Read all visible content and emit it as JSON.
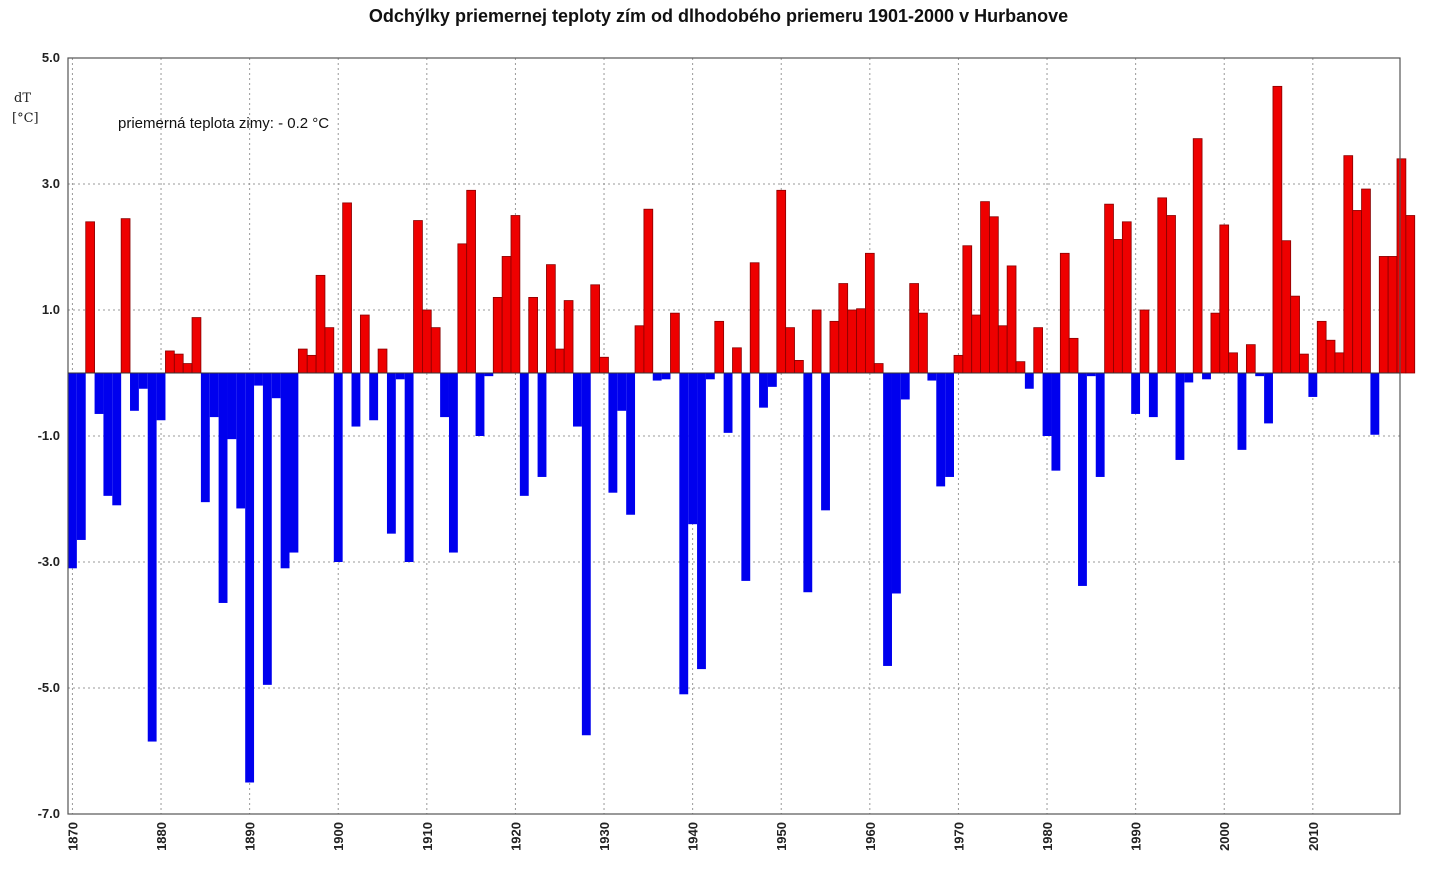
{
  "chart_data": {
    "type": "bar",
    "title": "Odchýlky priemernej teploty zím od dlhodobého priemeru 1901-2000 v Hurbanove",
    "ylabel_line1": "dT",
    "ylabel_line2": "[°C]",
    "annotation": "priemerná teplota zimy: - 0.2 °C",
    "ylim": [
      -7,
      5
    ],
    "yticks": [
      "5.0",
      "3.0",
      "1.0",
      "-1.0",
      "-3.0",
      "-5.0",
      "-7.0"
    ],
    "xticks": [
      "1870",
      "1880",
      "1890",
      "1900",
      "1910",
      "1920",
      "1930",
      "1940",
      "1950",
      "1960",
      "1970",
      "1980",
      "1990",
      "2000",
      "2010"
    ],
    "grid": true,
    "colors": {
      "positive": "#ee0000",
      "negative": "#0000ee",
      "axis": "#555555",
      "grid": "#999999"
    },
    "x": [
      1870,
      1871,
      1872,
      1873,
      1874,
      1875,
      1876,
      1877,
      1878,
      1879,
      1880,
      1881,
      1882,
      1883,
      1884,
      1885,
      1886,
      1887,
      1888,
      1889,
      1890,
      1891,
      1892,
      1893,
      1894,
      1895,
      1896,
      1897,
      1898,
      1899,
      1900,
      1901,
      1902,
      1903,
      1904,
      1905,
      1906,
      1907,
      1908,
      1909,
      1910,
      1911,
      1912,
      1913,
      1914,
      1915,
      1916,
      1917,
      1918,
      1919,
      1920,
      1921,
      1922,
      1923,
      1924,
      1925,
      1926,
      1927,
      1928,
      1929,
      1930,
      1931,
      1932,
      1933,
      1934,
      1935,
      1936,
      1937,
      1938,
      1939,
      1940,
      1941,
      1942,
      1943,
      1944,
      1945,
      1946,
      1947,
      1948,
      1949,
      1950,
      1951,
      1952,
      1953,
      1954,
      1955,
      1956,
      1957,
      1958,
      1959,
      1960,
      1961,
      1962,
      1963,
      1964,
      1965,
      1966,
      1967,
      1968,
      1969,
      1970,
      1971,
      1972,
      1973,
      1974,
      1975,
      1976,
      1977,
      1978,
      1979,
      1980,
      1981,
      1982,
      1983,
      1984,
      1985,
      1986,
      1987,
      1988,
      1989,
      1990,
      1991,
      1992,
      1993,
      1994,
      1995,
      1996,
      1997,
      1998,
      1999,
      2000,
      2001,
      2002,
      2003,
      2004,
      2005,
      2006,
      2007,
      2008,
      2009,
      2010,
      2011,
      2012,
      2013,
      2014,
      2015,
      2016,
      2017,
      2018,
      2019,
      2020,
      2021
    ],
    "values": [
      -3.1,
      -2.65,
      2.4,
      -0.65,
      -1.95,
      -2.1,
      2.45,
      -0.6,
      -0.25,
      -5.85,
      -0.75,
      0.35,
      0.3,
      0.15,
      0.88,
      -2.05,
      -0.7,
      -3.65,
      -1.05,
      -2.15,
      -6.5,
      -0.2,
      -4.95,
      -0.4,
      -3.1,
      -2.85,
      0.38,
      0.28,
      1.55,
      0.72,
      -3.0,
      2.7,
      -0.85,
      0.92,
      -0.75,
      0.38,
      -2.55,
      -0.1,
      -3.0,
      2.42,
      1.0,
      0.72,
      -0.7,
      -2.85,
      2.05,
      2.9,
      -1.0,
      -0.05,
      1.2,
      1.85,
      2.5,
      -1.95,
      1.2,
      -1.65,
      1.72,
      0.38,
      1.15,
      -0.85,
      -5.75,
      1.4,
      0.25,
      -1.9,
      -0.6,
      -2.25,
      0.75,
      2.6,
      -0.12,
      -0.1,
      0.95,
      -5.1,
      -2.4,
      -4.7,
      -0.1,
      0.82,
      -0.95,
      0.4,
      -3.3,
      1.75,
      -0.55,
      -0.22,
      2.9,
      0.72,
      0.2,
      -3.48,
      1.0,
      -2.18,
      0.82,
      1.42,
      1.0,
      1.02,
      1.9,
      0.15,
      -4.65,
      -3.5,
      -0.42,
      1.42,
      0.95,
      -0.12,
      -1.8,
      -1.65,
      0.28,
      2.02,
      0.92,
      2.72,
      2.48,
      0.75,
      1.7,
      0.18,
      -0.25,
      0.72,
      -1.0,
      -1.55,
      1.9,
      0.55,
      -3.38,
      -0.05,
      -1.65,
      2.68,
      2.12,
      2.4,
      -0.65,
      1.0,
      -0.7,
      2.78,
      2.5,
      -1.38,
      -0.15,
      3.72,
      -0.1,
      0.95,
      2.35,
      0.32,
      -1.22,
      0.45,
      -0.05,
      -0.8,
      4.55,
      2.1,
      1.22,
      0.3,
      -0.38,
      0.82,
      0.52,
      0.32,
      3.45,
      2.58,
      2.92,
      -0.98,
      1.85,
      1.85,
      3.4,
      2.5
    ]
  }
}
